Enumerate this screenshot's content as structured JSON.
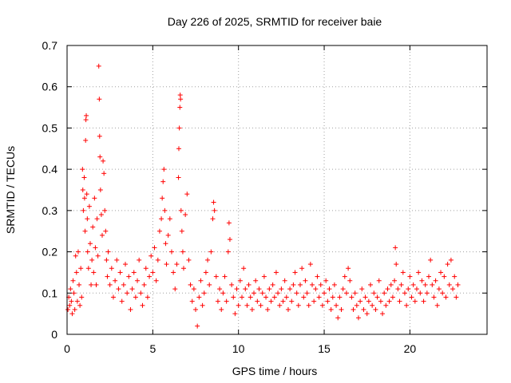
{
  "chart_data": {
    "type": "scatter",
    "title": "Day 226 of 2025, SRMTID for receiver baie",
    "xlabel": "GPS time / hours",
    "ylabel": "SRMTID / TECUs",
    "xlim": [
      0,
      24.5
    ],
    "ylim": [
      0,
      0.7
    ],
    "xticks": [
      0,
      5,
      10,
      15,
      20
    ],
    "yticks": [
      0,
      0.1,
      0.2,
      0.3,
      0.4,
      0.5,
      0.6,
      0.7
    ],
    "grid": true,
    "marker": "+",
    "color": "#ff0000",
    "series": [
      {
        "name": "SRMTID",
        "points": [
          [
            0.05,
            0.06
          ],
          [
            0.1,
            0.09
          ],
          [
            0.15,
            0.07
          ],
          [
            0.2,
            0.11
          ],
          [
            0.25,
            0.08
          ],
          [
            0.3,
            0.05
          ],
          [
            0.35,
            0.13
          ],
          [
            0.4,
            0.1
          ],
          [
            0.45,
            0.06
          ],
          [
            0.5,
            0.19
          ],
          [
            0.55,
            0.15
          ],
          [
            0.6,
            0.08
          ],
          [
            0.65,
            0.2
          ],
          [
            0.7,
            0.12
          ],
          [
            0.75,
            0.07
          ],
          [
            0.8,
            0.16
          ],
          [
            0.85,
            0.09
          ],
          [
            0.9,
            0.4
          ],
          [
            0.92,
            0.35
          ],
          [
            0.95,
            0.3
          ],
          [
            1.0,
            0.38
          ],
          [
            1.02,
            0.33
          ],
          [
            1.05,
            0.25
          ],
          [
            1.08,
            0.47
          ],
          [
            1.1,
            0.52
          ],
          [
            1.12,
            0.53
          ],
          [
            1.15,
            0.34
          ],
          [
            1.18,
            0.28
          ],
          [
            1.2,
            0.2
          ],
          [
            1.25,
            0.16
          ],
          [
            1.3,
            0.31
          ],
          [
            1.35,
            0.22
          ],
          [
            1.4,
            0.12
          ],
          [
            1.45,
            0.18
          ],
          [
            1.5,
            0.26
          ],
          [
            1.55,
            0.15
          ],
          [
            1.6,
            0.33
          ],
          [
            1.65,
            0.21
          ],
          [
            1.7,
            0.12
          ],
          [
            1.75,
            0.28
          ],
          [
            1.8,
            0.19
          ],
          [
            1.85,
            0.65
          ],
          [
            1.88,
            0.57
          ],
          [
            1.9,
            0.48
          ],
          [
            1.92,
            0.43
          ],
          [
            1.95,
            0.35
          ],
          [
            2.0,
            0.29
          ],
          [
            2.05,
            0.24
          ],
          [
            2.1,
            0.42
          ],
          [
            2.15,
            0.39
          ],
          [
            2.2,
            0.3
          ],
          [
            2.25,
            0.25
          ],
          [
            2.3,
            0.18
          ],
          [
            2.35,
            0.14
          ],
          [
            2.4,
            0.2
          ],
          [
            2.5,
            0.12
          ],
          [
            2.6,
            0.16
          ],
          [
            2.7,
            0.09
          ],
          [
            2.8,
            0.13
          ],
          [
            2.9,
            0.18
          ],
          [
            3.0,
            0.11
          ],
          [
            3.1,
            0.15
          ],
          [
            3.2,
            0.08
          ],
          [
            3.3,
            0.12
          ],
          [
            3.4,
            0.17
          ],
          [
            3.5,
            0.1
          ],
          [
            3.6,
            0.14
          ],
          [
            3.7,
            0.06
          ],
          [
            3.8,
            0.11
          ],
          [
            3.9,
            0.15
          ],
          [
            4.0,
            0.09
          ],
          [
            4.1,
            0.13
          ],
          [
            4.2,
            0.18
          ],
          [
            4.3,
            0.1
          ],
          [
            4.4,
            0.07
          ],
          [
            4.5,
            0.12
          ],
          [
            4.6,
            0.16
          ],
          [
            4.7,
            0.09
          ],
          [
            4.8,
            0.14
          ],
          [
            4.9,
            0.19
          ],
          [
            5.0,
            0.15
          ],
          [
            5.1,
            0.21
          ],
          [
            5.2,
            0.13
          ],
          [
            5.3,
            0.18
          ],
          [
            5.4,
            0.25
          ],
          [
            5.5,
            0.28
          ],
          [
            5.55,
            0.33
          ],
          [
            5.6,
            0.37
          ],
          [
            5.65,
            0.4
          ],
          [
            5.7,
            0.3
          ],
          [
            5.75,
            0.22
          ],
          [
            5.8,
            0.17
          ],
          [
            5.9,
            0.24
          ],
          [
            6.0,
            0.28
          ],
          [
            6.1,
            0.2
          ],
          [
            6.2,
            0.15
          ],
          [
            6.3,
            0.11
          ],
          [
            6.4,
            0.17
          ],
          [
            6.5,
            0.38
          ],
          [
            6.52,
            0.45
          ],
          [
            6.55,
            0.5
          ],
          [
            6.58,
            0.55
          ],
          [
            6.6,
            0.58
          ],
          [
            6.62,
            0.57
          ],
          [
            6.65,
            0.3
          ],
          [
            6.7,
            0.25
          ],
          [
            6.75,
            0.2
          ],
          [
            6.8,
            0.16
          ],
          [
            6.9,
            0.29
          ],
          [
            7.0,
            0.34
          ],
          [
            7.1,
            0.18
          ],
          [
            7.2,
            0.12
          ],
          [
            7.3,
            0.08
          ],
          [
            7.4,
            0.11
          ],
          [
            7.5,
            0.06
          ],
          [
            7.6,
            0.02
          ],
          [
            7.7,
            0.09
          ],
          [
            7.8,
            0.13
          ],
          [
            7.9,
            0.07
          ],
          [
            8.0,
            0.1
          ],
          [
            8.1,
            0.15
          ],
          [
            8.2,
            0.18
          ],
          [
            8.3,
            0.12
          ],
          [
            8.4,
            0.2
          ],
          [
            8.5,
            0.28
          ],
          [
            8.55,
            0.32
          ],
          [
            8.6,
            0.3
          ],
          [
            8.7,
            0.14
          ],
          [
            8.8,
            0.08
          ],
          [
            8.9,
            0.11
          ],
          [
            9.0,
            0.06
          ],
          [
            9.1,
            0.1
          ],
          [
            9.2,
            0.14
          ],
          [
            9.3,
            0.08
          ],
          [
            9.4,
            0.2
          ],
          [
            9.45,
            0.27
          ],
          [
            9.5,
            0.23
          ],
          [
            9.6,
            0.12
          ],
          [
            9.7,
            0.09
          ],
          [
            9.8,
            0.05
          ],
          [
            9.9,
            0.11
          ],
          [
            10.0,
            0.07
          ],
          [
            10.1,
            0.13
          ],
          [
            10.2,
            0.09
          ],
          [
            10.3,
            0.16
          ],
          [
            10.4,
            0.11
          ],
          [
            10.5,
            0.07
          ],
          [
            10.6,
            0.12
          ],
          [
            10.7,
            0.09
          ],
          [
            10.8,
            0.06
          ],
          [
            10.9,
            0.1
          ],
          [
            11.0,
            0.13
          ],
          [
            11.1,
            0.08
          ],
          [
            11.2,
            0.11
          ],
          [
            11.3,
            0.07
          ],
          [
            11.4,
            0.1
          ],
          [
            11.5,
            0.14
          ],
          [
            11.6,
            0.09
          ],
          [
            11.7,
            0.06
          ],
          [
            11.8,
            0.11
          ],
          [
            11.9,
            0.08
          ],
          [
            12.0,
            0.12
          ],
          [
            12.1,
            0.09
          ],
          [
            12.2,
            0.15
          ],
          [
            12.3,
            0.1
          ],
          [
            12.4,
            0.07
          ],
          [
            12.5,
            0.11
          ],
          [
            12.6,
            0.08
          ],
          [
            12.7,
            0.13
          ],
          [
            12.8,
            0.09
          ],
          [
            12.9,
            0.06
          ],
          [
            13.0,
            0.11
          ],
          [
            13.1,
            0.08
          ],
          [
            13.2,
            0.12
          ],
          [
            13.3,
            0.15
          ],
          [
            13.4,
            0.1
          ],
          [
            13.5,
            0.07
          ],
          [
            13.6,
            0.12
          ],
          [
            13.7,
            0.16
          ],
          [
            13.8,
            0.09
          ],
          [
            13.9,
            0.13
          ],
          [
            14.0,
            0.1
          ],
          [
            14.1,
            0.07
          ],
          [
            14.2,
            0.17
          ],
          [
            14.3,
            0.12
          ],
          [
            14.4,
            0.08
          ],
          [
            14.5,
            0.11
          ],
          [
            14.6,
            0.14
          ],
          [
            14.7,
            0.09
          ],
          [
            14.8,
            0.12
          ],
          [
            14.9,
            0.07
          ],
          [
            15.0,
            0.1
          ],
          [
            15.1,
            0.13
          ],
          [
            15.2,
            0.08
          ],
          [
            15.3,
            0.11
          ],
          [
            15.4,
            0.06
          ],
          [
            15.5,
            0.09
          ],
          [
            15.6,
            0.12
          ],
          [
            15.7,
            0.07
          ],
          [
            15.8,
            0.04
          ],
          [
            15.9,
            0.09
          ],
          [
            16.0,
            0.06
          ],
          [
            16.1,
            0.11
          ],
          [
            16.2,
            0.14
          ],
          [
            16.3,
            0.1
          ],
          [
            16.4,
            0.16
          ],
          [
            16.5,
            0.13
          ],
          [
            16.6,
            0.09
          ],
          [
            16.7,
            0.06
          ],
          [
            16.8,
            0.1
          ],
          [
            16.9,
            0.07
          ],
          [
            17.0,
            0.04
          ],
          [
            17.1,
            0.08
          ],
          [
            17.2,
            0.11
          ],
          [
            17.3,
            0.06
          ],
          [
            17.4,
            0.09
          ],
          [
            17.5,
            0.05
          ],
          [
            17.6,
            0.08
          ],
          [
            17.7,
            0.12
          ],
          [
            17.8,
            0.07
          ],
          [
            17.9,
            0.1
          ],
          [
            18.0,
            0.06
          ],
          [
            18.1,
            0.09
          ],
          [
            18.2,
            0.13
          ],
          [
            18.3,
            0.08
          ],
          [
            18.4,
            0.05
          ],
          [
            18.5,
            0.1
          ],
          [
            18.6,
            0.07
          ],
          [
            18.7,
            0.11
          ],
          [
            18.8,
            0.08
          ],
          [
            18.9,
            0.12
          ],
          [
            19.0,
            0.09
          ],
          [
            19.1,
            0.13
          ],
          [
            19.15,
            0.21
          ],
          [
            19.2,
            0.17
          ],
          [
            19.3,
            0.11
          ],
          [
            19.4,
            0.08
          ],
          [
            19.5,
            0.12
          ],
          [
            19.6,
            0.15
          ],
          [
            19.7,
            0.1
          ],
          [
            19.8,
            0.07
          ],
          [
            19.9,
            0.11
          ],
          [
            20.0,
            0.14
          ],
          [
            20.1,
            0.09
          ],
          [
            20.2,
            0.12
          ],
          [
            20.3,
            0.08
          ],
          [
            20.4,
            0.11
          ],
          [
            20.5,
            0.15
          ],
          [
            20.6,
            0.1
          ],
          [
            20.7,
            0.13
          ],
          [
            20.8,
            0.08
          ],
          [
            20.9,
            0.12
          ],
          [
            21.0,
            0.1
          ],
          [
            21.1,
            0.14
          ],
          [
            21.2,
            0.18
          ],
          [
            21.3,
            0.12
          ],
          [
            21.4,
            0.09
          ],
          [
            21.5,
            0.13
          ],
          [
            21.6,
            0.07
          ],
          [
            21.7,
            0.11
          ],
          [
            21.8,
            0.15
          ],
          [
            21.9,
            0.1
          ],
          [
            22.0,
            0.14
          ],
          [
            22.1,
            0.09
          ],
          [
            22.2,
            0.17
          ],
          [
            22.3,
            0.12
          ],
          [
            22.4,
            0.18
          ],
          [
            22.5,
            0.11
          ],
          [
            22.6,
            0.14
          ],
          [
            22.7,
            0.09
          ],
          [
            22.8,
            0.12
          ]
        ]
      }
    ]
  }
}
